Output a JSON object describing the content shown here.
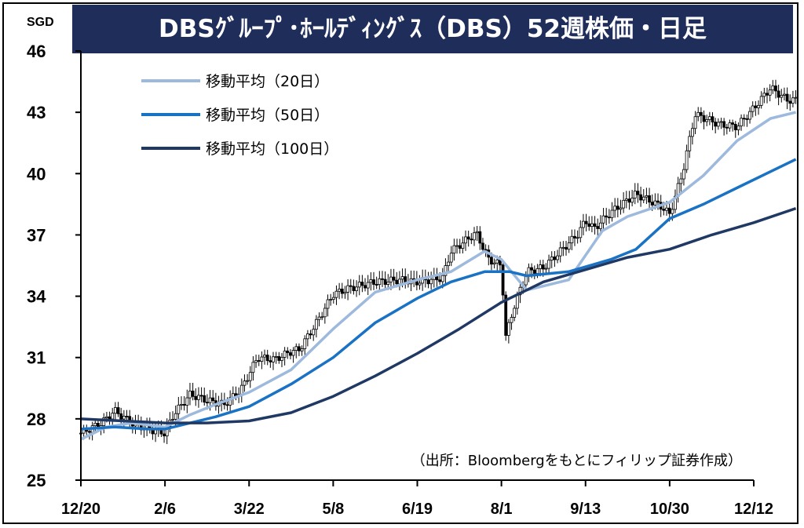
{
  "header": {
    "title": "DBSｸﾞﾙｰﾌﾟ･ﾎｰﾙﾃﾞｨﾝｸﾞｽ（DBS）52週株価・日足",
    "unit": "SGD"
  },
  "source_note": "（出所：Bloombergをもとにフィリップ証券作成）",
  "colors": {
    "title_bg": "#1f2d5a",
    "ma20": "#9db9dd",
    "ma50": "#1a72c4",
    "ma100": "#1f3864",
    "candle": "#000000",
    "axis": "#000000"
  },
  "chart_data": {
    "type": "line",
    "title": "DBSｸﾞﾙｰﾌﾟ･ﾎｰﾙﾃﾞｨﾝｸﾞｽ（DBS）52週株価・日足",
    "ylabel": "SGD",
    "ylim": [
      25,
      46
    ],
    "y_ticks": [
      "25",
      "28",
      "31",
      "34",
      "37",
      "40",
      "43",
      "46"
    ],
    "x_ticks": [
      "12/20",
      "2/6",
      "3/22",
      "5/8",
      "6/19",
      "8/1",
      "9/13",
      "10/30",
      "12/12"
    ],
    "grid": false,
    "legend": "top-left",
    "price_close": [
      [
        0,
        27.3
      ],
      [
        0.25,
        27.8
      ],
      [
        0.4,
        28.4
      ],
      [
        0.6,
        27.8
      ],
      [
        0.8,
        27.5
      ],
      [
        1,
        27.3
      ],
      [
        1.1,
        28.2
      ],
      [
        1.3,
        29.2
      ],
      [
        1.5,
        28.9
      ],
      [
        1.7,
        28.7
      ],
      [
        1.9,
        29.4
      ],
      [
        2,
        30.2
      ],
      [
        2.1,
        31.0
      ],
      [
        2.3,
        30.9
      ],
      [
        2.5,
        31.3
      ],
      [
        2.6,
        31.4
      ],
      [
        2.8,
        32.7
      ],
      [
        3,
        34.1
      ],
      [
        3.2,
        34.4
      ],
      [
        3.5,
        34.7
      ],
      [
        3.8,
        34.8
      ],
      [
        4,
        34.7
      ],
      [
        4.3,
        34.9
      ],
      [
        4.4,
        36.2
      ],
      [
        4.7,
        37.1
      ],
      [
        4.85,
        35.8
      ],
      [
        5,
        35.5
      ],
      [
        5.05,
        32.0
      ],
      [
        5.15,
        33.5
      ],
      [
        5.3,
        35.2
      ],
      [
        5.5,
        35.4
      ],
      [
        5.7,
        36.2
      ],
      [
        5.9,
        37.0
      ],
      [
        6,
        37.7
      ],
      [
        6.1,
        37.3
      ],
      [
        6.3,
        38.1
      ],
      [
        6.6,
        39.0
      ],
      [
        6.9,
        38.4
      ],
      [
        7.0,
        38.0
      ],
      [
        7.15,
        40.0
      ],
      [
        7.3,
        42.9
      ],
      [
        7.6,
        42.4
      ],
      [
        7.8,
        42.3
      ],
      [
        8.0,
        43.2
      ],
      [
        8.2,
        44.2
      ],
      [
        8.4,
        43.6
      ],
      [
        8.5,
        43.6
      ]
    ],
    "series": [
      {
        "name": "移動平均（20日）",
        "color": "#9db9dd",
        "x": [
          0,
          0.3,
          0.6,
          1.0,
          1.3,
          1.6,
          2.0,
          2.5,
          3.0,
          3.5,
          4.0,
          4.4,
          4.8,
          5.0,
          5.3,
          5.8,
          6.2,
          6.5,
          7.0,
          7.4,
          7.8,
          8.2,
          8.5
        ],
        "values": [
          27.0,
          27.6,
          27.8,
          27.6,
          28.2,
          28.7,
          29.3,
          30.4,
          32.4,
          34.2,
          34.8,
          35.2,
          36.2,
          35.8,
          34.3,
          34.8,
          37.2,
          37.9,
          38.6,
          39.9,
          41.6,
          42.7,
          43.0
        ]
      },
      {
        "name": "移動平均（50日）",
        "color": "#1a72c4",
        "x": [
          0,
          0.4,
          0.8,
          1.0,
          1.3,
          1.6,
          2.0,
          2.5,
          3.0,
          3.5,
          4.0,
          4.4,
          4.8,
          5.1,
          5.3,
          5.8,
          6.3,
          6.6,
          7.0,
          7.4,
          7.8,
          8.2,
          8.5
        ],
        "values": [
          27.5,
          27.6,
          27.5,
          27.5,
          27.8,
          28.1,
          28.6,
          29.7,
          31.0,
          32.7,
          33.9,
          34.7,
          35.2,
          35.2,
          35.0,
          35.2,
          35.8,
          36.3,
          37.8,
          38.5,
          39.3,
          40.1,
          40.7
        ]
      },
      {
        "name": "移動平均（100日）",
        "color": "#1f3864",
        "x": [
          0,
          0.5,
          1.0,
          1.5,
          2.0,
          2.5,
          3.0,
          3.5,
          4.0,
          4.5,
          5.0,
          5.5,
          6.0,
          6.5,
          7.0,
          7.5,
          8.0,
          8.5
        ],
        "values": [
          28.0,
          27.9,
          27.8,
          27.8,
          27.9,
          28.3,
          29.1,
          30.1,
          31.2,
          32.4,
          33.7,
          34.7,
          35.3,
          35.9,
          36.3,
          37.0,
          37.6,
          38.3
        ]
      }
    ]
  }
}
